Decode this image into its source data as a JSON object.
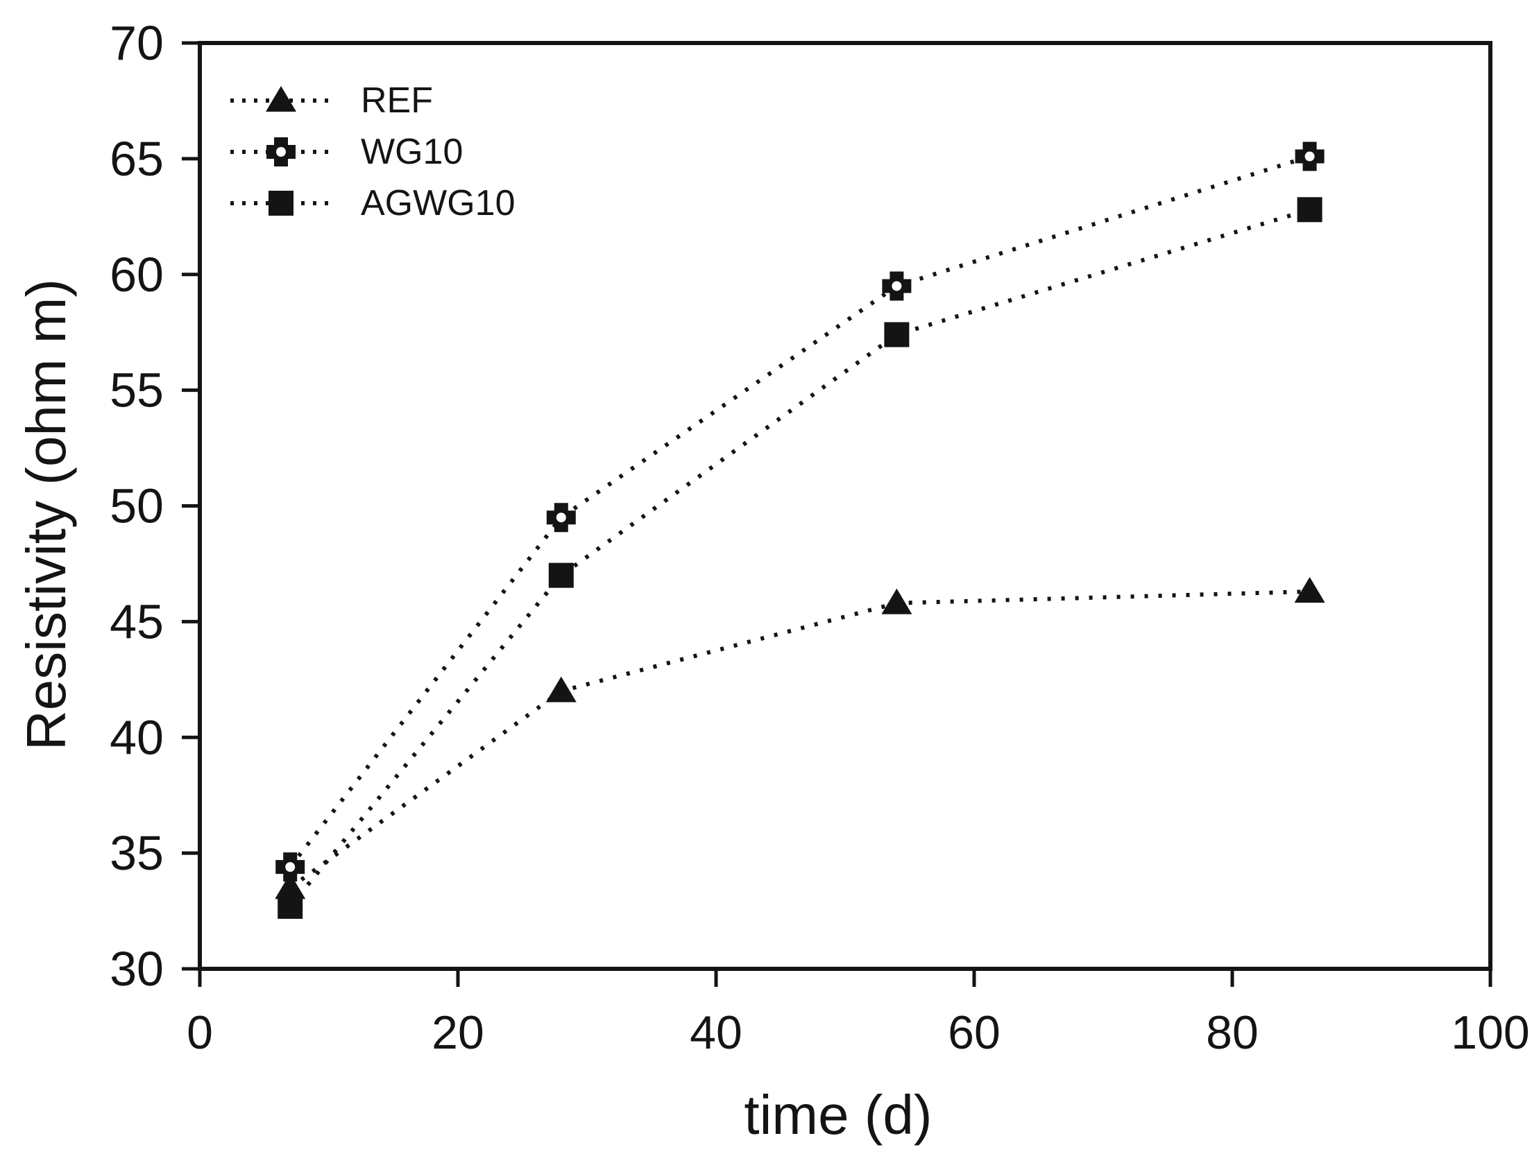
{
  "figure": {
    "background": "#ffffff",
    "ink_color": "#141414"
  },
  "chart_data": {
    "type": "line",
    "x": [
      7,
      28,
      54,
      86
    ],
    "series": [
      {
        "name": "REF",
        "marker": "filled-triangle",
        "values": [
          33.5,
          42.0,
          45.8,
          46.3
        ]
      },
      {
        "name": "WG10",
        "marker": "open-cross-circle",
        "values": [
          34.4,
          49.5,
          59.5,
          65.1
        ]
      },
      {
        "name": "AGWG10",
        "marker": "filled-square",
        "values": [
          32.7,
          47.0,
          57.4,
          62.8
        ]
      }
    ],
    "xlabel": "time (d)",
    "ylabel": "Resistivity (ohm m)",
    "xlim": [
      0,
      100
    ],
    "ylim": [
      30,
      70
    ],
    "xticks": [
      0,
      20,
      40,
      60,
      80,
      100
    ],
    "yticks": [
      30,
      35,
      40,
      45,
      50,
      55,
      60,
      65,
      70
    ],
    "line_style": "dotted",
    "grid": false,
    "legend_position": "top-left"
  }
}
